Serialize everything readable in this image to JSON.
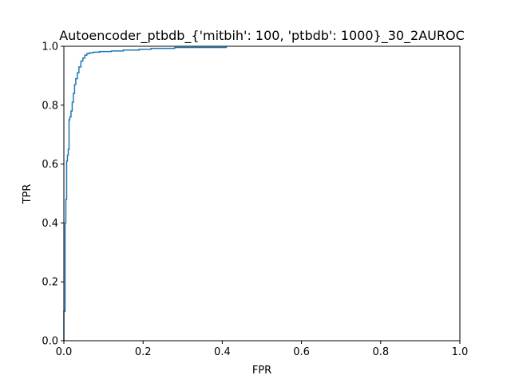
{
  "chart_data": {
    "type": "line",
    "title": "Autoencoder_ptbdb_{'mitbih': 100, 'ptbdb': 1000}_30_2AUROC",
    "xlabel": "FPR",
    "ylabel": "TPR",
    "xlim": [
      0.0,
      1.0
    ],
    "ylim": [
      0.0,
      1.0
    ],
    "xticks": [
      "0.0",
      "0.2",
      "0.4",
      "0.6",
      "0.8",
      "1.0"
    ],
    "yticks": [
      "0.0",
      "0.2",
      "0.4",
      "0.6",
      "0.8",
      "1.0"
    ],
    "grid": false,
    "legend": false,
    "line_color": "#1f77b4",
    "series": [
      {
        "x": [
          0.0,
          0.0,
          0.003,
          0.003,
          0.005,
          0.005,
          0.007,
          0.007,
          0.009,
          0.009,
          0.011,
          0.011,
          0.013,
          0.013,
          0.015,
          0.015,
          0.018,
          0.018,
          0.021,
          0.021,
          0.024,
          0.024,
          0.027,
          0.027,
          0.03,
          0.03,
          0.034,
          0.034,
          0.038,
          0.038,
          0.043,
          0.043,
          0.048,
          0.048,
          0.053,
          0.053,
          0.058,
          0.058,
          0.065,
          0.065,
          0.075,
          0.075,
          0.09,
          0.09,
          0.12,
          0.12,
          0.15,
          0.15,
          0.19,
          0.19,
          0.22,
          0.22,
          0.28,
          0.28,
          0.41,
          0.41
        ],
        "y": [
          0.0,
          0.1,
          0.1,
          0.4,
          0.4,
          0.48,
          0.48,
          0.61,
          0.61,
          0.63,
          0.63,
          0.65,
          0.65,
          0.75,
          0.75,
          0.76,
          0.76,
          0.78,
          0.78,
          0.81,
          0.81,
          0.84,
          0.84,
          0.87,
          0.87,
          0.89,
          0.89,
          0.91,
          0.91,
          0.93,
          0.93,
          0.95,
          0.95,
          0.96,
          0.96,
          0.97,
          0.97,
          0.975,
          0.975,
          0.978,
          0.978,
          0.98,
          0.98,
          0.982,
          0.982,
          0.984,
          0.984,
          0.987,
          0.987,
          0.99,
          0.99,
          0.993,
          0.993,
          0.996,
          0.996,
          1.0
        ]
      }
    ]
  }
}
